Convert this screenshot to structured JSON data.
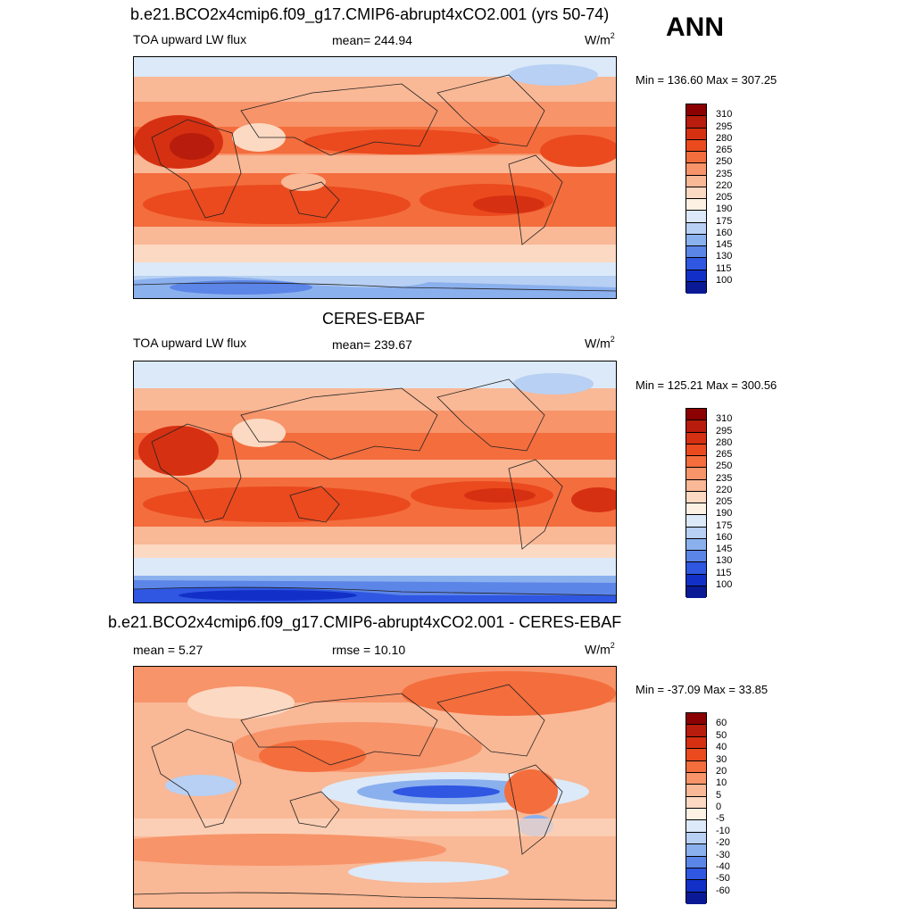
{
  "season": "ANN",
  "panels": [
    {
      "title": "b.e21.BCO2x4cmip6.f09_g17.CMIP6-abrupt4xCO2.001 (yrs 50-74)",
      "left_label": "TOA upward LW flux",
      "center_label": "mean= 244.94",
      "units": "W/m",
      "units_sup": "2",
      "minmax": "Min = 136.60 Max = 307.25"
    },
    {
      "title": "CERES-EBAF",
      "left_label": "TOA upward LW flux",
      "center_label": "mean= 239.67",
      "units": "W/m",
      "units_sup": "2",
      "minmax": "Min = 125.21 Max = 300.56"
    },
    {
      "title": "b.e21.BCO2x4cmip6.f09_g17.CMIP6-abrupt4xCO2.001 - CERES-EBAF",
      "left_label": "mean =   5.27",
      "center_label": "rmse =  10.10",
      "units": "W/m",
      "units_sup": "2",
      "minmax": "Min = -37.09 Max =  33.85"
    }
  ],
  "colorbar_abs": {
    "ticks": [
      "310",
      "295",
      "280",
      "265",
      "250",
      "235",
      "220",
      "205",
      "190",
      "175",
      "160",
      "145",
      "130",
      "115",
      "100"
    ],
    "colors": [
      "#8b0000",
      "#b71c0c",
      "#d63012",
      "#ea4a1e",
      "#f46d3d",
      "#f7946a",
      "#f9b896",
      "#fcd9c2",
      "#fdf1e4",
      "#dce9f8",
      "#b7d0f3",
      "#8bb0ee",
      "#5c85e8",
      "#2f57e2",
      "#1230c8",
      "#0a1a96"
    ]
  },
  "colorbar_diff": {
    "ticks": [
      "60",
      "50",
      "40",
      "30",
      "20",
      "10",
      "5",
      "0",
      "-5",
      "-10",
      "-20",
      "-30",
      "-40",
      "-50",
      "-60"
    ],
    "colors": [
      "#8b0000",
      "#b71c0c",
      "#d63012",
      "#ea4a1e",
      "#f46d3d",
      "#f7946a",
      "#f9b896",
      "#fcd9c2",
      "#fdf1e4",
      "#dce9f8",
      "#b7d0f3",
      "#8bb0ee",
      "#5c85e8",
      "#2f57e2",
      "#1230c8",
      "#0a1a96"
    ]
  }
}
